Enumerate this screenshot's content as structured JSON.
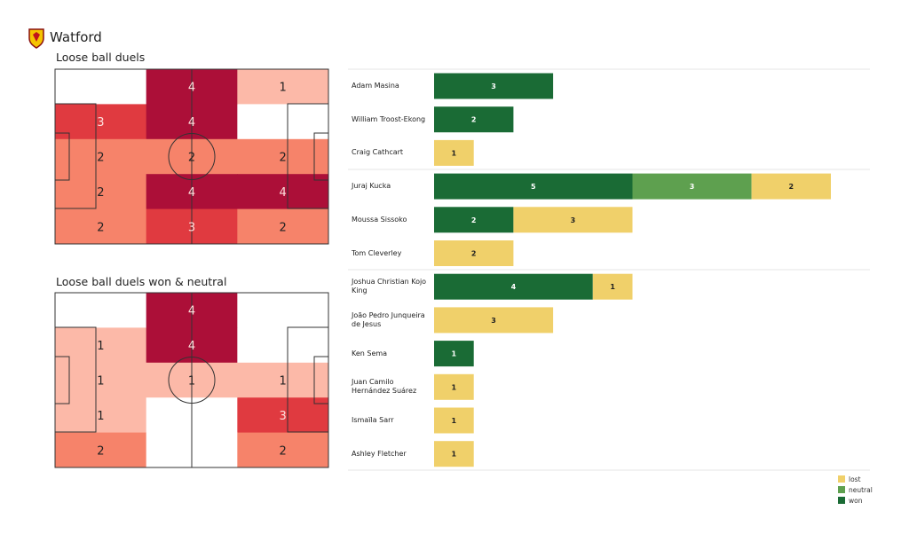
{
  "team": "Watford",
  "colors": {
    "won": "#1a6b35",
    "neutral": "#5ea04f",
    "lost": "#f0d06a",
    "heat": [
      "#ffffff",
      "#fcb9a8",
      "#f6836a",
      "#e03a40",
      "#ac0f38"
    ]
  },
  "chart_data": [
    {
      "type": "heatmap",
      "title": "Loose ball duels",
      "rows": 5,
      "cols": 3,
      "values": [
        [
          0,
          4,
          1
        ],
        [
          3,
          4,
          0
        ],
        [
          2,
          2,
          2
        ],
        [
          2,
          4,
          4
        ],
        [
          2,
          3,
          2
        ]
      ]
    },
    {
      "type": "heatmap",
      "title": "Loose ball duels won & neutral",
      "rows": 5,
      "cols": 3,
      "values": [
        [
          0,
          4,
          0
        ],
        [
          1,
          4,
          0
        ],
        [
          1,
          1,
          1
        ],
        [
          1,
          0,
          3
        ],
        [
          2,
          0,
          2
        ]
      ]
    },
    {
      "type": "bar",
      "orientation": "horizontal",
      "stacked": true,
      "legend": [
        "lost",
        "neutral",
        "won"
      ],
      "legend_placement": "bottom-right",
      "categories": [
        "Adam Masina",
        "William Troost-Ekong",
        "Craig Cathcart",
        "Juraj Kucka",
        "Moussa Sissoko",
        "Tom Cleverley",
        "Joshua Christian Kojo King",
        "João Pedro Junqueira de Jesus",
        "Ken Sema",
        "Juan Camilo Hernández Suárez",
        "Ismaïla Sarr",
        "Ashley Fletcher"
      ],
      "series": [
        {
          "name": "won",
          "values": [
            3,
            2,
            0,
            5,
            2,
            0,
            4,
            0,
            1,
            0,
            0,
            0
          ]
        },
        {
          "name": "neutral",
          "values": [
            0,
            0,
            0,
            3,
            0,
            0,
            0,
            0,
            0,
            0,
            0,
            0
          ]
        },
        {
          "name": "lost",
          "values": [
            0,
            0,
            1,
            2,
            3,
            2,
            1,
            3,
            0,
            1,
            1,
            1
          ]
        }
      ]
    }
  ]
}
